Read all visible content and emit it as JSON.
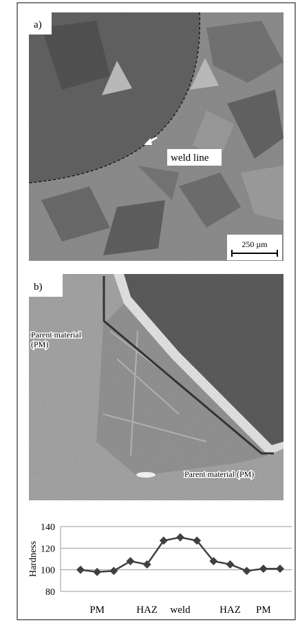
{
  "panel_a": {
    "label": "a)",
    "annotation": "weld line",
    "scale_bar": "250 µm"
  },
  "panel_b": {
    "label": "b)",
    "annotation_left": [
      "Parent material",
      "(PM)"
    ],
    "annotation_right": "Parent material (PM)"
  },
  "chart_data": {
    "type": "line",
    "y_label": "Hardness",
    "categories": [
      null,
      "PM",
      null,
      null,
      "HAZ",
      null,
      "weld",
      null,
      null,
      "HAZ",
      null,
      "PM",
      null
    ],
    "series": [
      {
        "name": "Hardness",
        "color": "#404040",
        "values": [
          100,
          98,
          99,
          108,
          105,
          127,
          130,
          127,
          108,
          105,
          99,
          101,
          101
        ]
      }
    ],
    "ylim": [
      80,
      140
    ],
    "yticks": [
      80,
      100,
      120,
      140
    ],
    "grid": true
  }
}
